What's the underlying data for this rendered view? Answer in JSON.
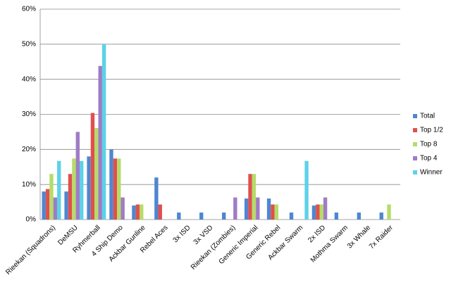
{
  "chart_data": {
    "type": "bar",
    "categories": [
      "Rieekan (Squadrons)",
      "DeMSU",
      "Ryhmerball",
      "4 Ship Demo",
      "Ackbar Gunline",
      "Rebel Aces",
      "3x ISD",
      "3x VSD",
      "Rieekan (Zombies)",
      "Generic Imperial",
      "Generic Rebel",
      "Ackbar Swarm",
      "2x ISD",
      "Mothma Swarm",
      "3x Whale",
      "7x Raider"
    ],
    "series": [
      {
        "name": "Total",
        "color": "#4f86d0",
        "values": [
          8,
          8,
          18,
          20,
          4,
          12,
          2,
          2,
          2,
          6,
          6,
          2,
          4,
          2,
          2,
          2
        ]
      },
      {
        "name": "Top 1/2",
        "color": "#e0504c",
        "values": [
          8.7,
          13,
          30.4,
          17.4,
          4.3,
          4.3,
          0,
          0,
          0,
          13,
          4.3,
          0,
          4.3,
          0,
          0,
          0
        ]
      },
      {
        "name": "Top 8",
        "color": "#b5dc68",
        "values": [
          13,
          17.4,
          26.1,
          17.4,
          4.3,
          0,
          0,
          0,
          0,
          13,
          4.3,
          0,
          4.3,
          0,
          0,
          4.3
        ]
      },
      {
        "name": "Top 4",
        "color": "#9f7cc6",
        "values": [
          6.3,
          25,
          43.8,
          6.3,
          0,
          0,
          0,
          0,
          6.3,
          6.3,
          0,
          0,
          6.3,
          0,
          0,
          0
        ]
      },
      {
        "name": "Winner",
        "color": "#5cd2e8",
        "values": [
          16.7,
          16.7,
          50,
          0,
          0,
          0,
          0,
          0,
          0,
          0,
          0,
          16.7,
          0,
          0,
          0,
          0
        ]
      }
    ],
    "ylim": [
      0,
      60
    ],
    "yticks": [
      {
        "value": 0,
        "label": "0%"
      },
      {
        "value": 10,
        "label": "10%"
      },
      {
        "value": 20,
        "label": "20%"
      },
      {
        "value": 30,
        "label": "30%"
      },
      {
        "value": 40,
        "label": "40%"
      },
      {
        "value": 50,
        "label": "50%"
      },
      {
        "value": 60,
        "label": "60%"
      }
    ],
    "grid": true,
    "legend": "right"
  }
}
